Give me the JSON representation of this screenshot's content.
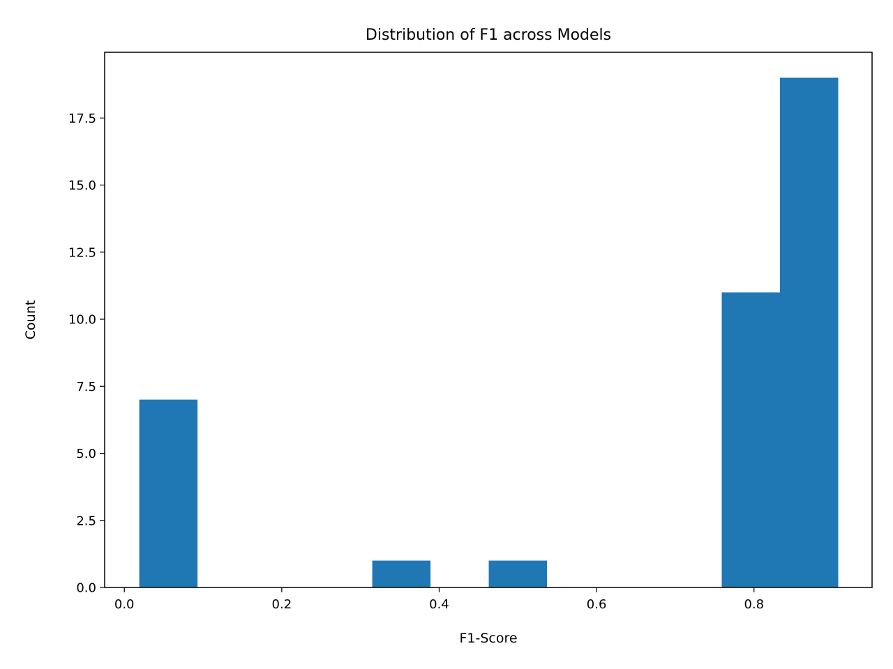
{
  "chart_data": {
    "type": "bar",
    "title": "Distribution of F1 across Models",
    "xlabel": "F1-Score",
    "ylabel": "Count",
    "bins": [
      [
        0.019,
        0.093
      ],
      [
        0.093,
        0.167
      ],
      [
        0.167,
        0.241
      ],
      [
        0.241,
        0.315
      ],
      [
        0.315,
        0.389
      ],
      [
        0.389,
        0.463
      ],
      [
        0.463,
        0.537
      ],
      [
        0.537,
        0.611
      ],
      [
        0.611,
        0.685
      ],
      [
        0.685,
        0.759
      ],
      [
        0.759,
        0.833
      ],
      [
        0.833,
        0.907
      ]
    ],
    "values": [
      7,
      0,
      0,
      0,
      1,
      0,
      1,
      0,
      0,
      0,
      11,
      19
    ],
    "xlim": [
      -0.025,
      0.95
    ],
    "ylim": [
      0,
      19.95
    ],
    "xticks": [
      0.0,
      0.2,
      0.4,
      0.6,
      0.8
    ],
    "xtick_labels": [
      "0.0",
      "0.2",
      "0.4",
      "0.6",
      "0.8"
    ],
    "yticks": [
      0.0,
      2.5,
      5.0,
      7.5,
      10.0,
      12.5,
      15.0,
      17.5
    ],
    "ytick_labels": [
      "0.0",
      "2.5",
      "5.0",
      "7.5",
      "10.0",
      "12.5",
      "15.0",
      "17.5"
    ],
    "bar_color": "#1f77b4",
    "grid": false,
    "legend": false
  }
}
